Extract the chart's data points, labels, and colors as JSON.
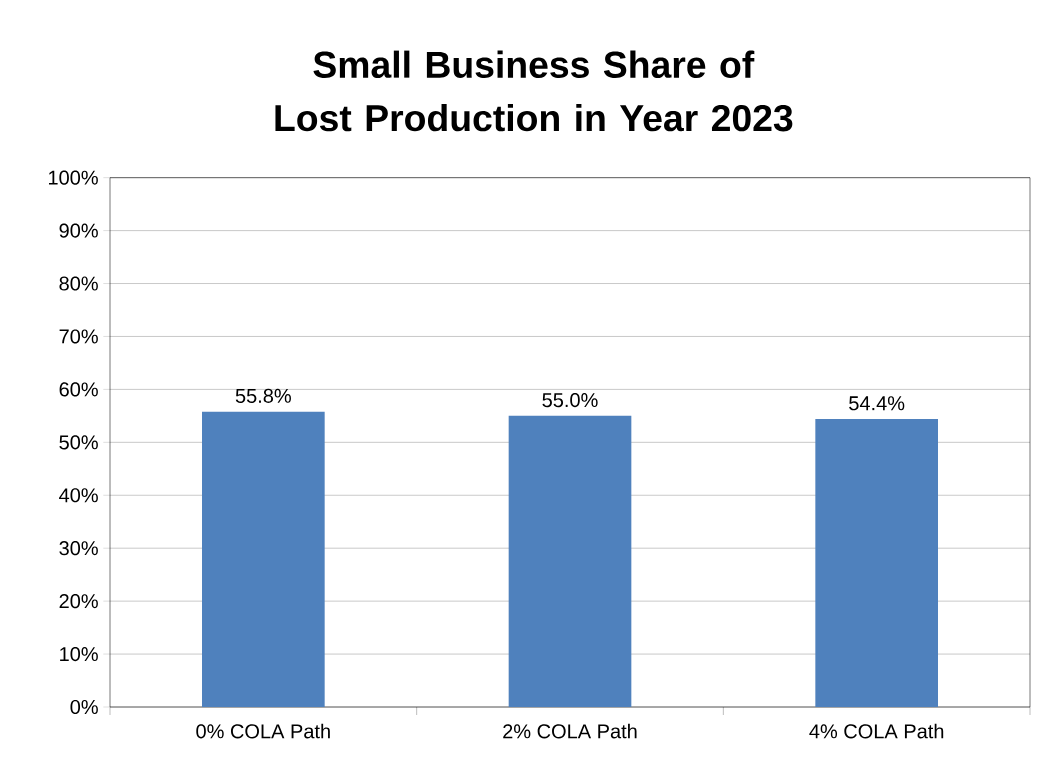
{
  "chart_data": {
    "type": "bar",
    "title": "Small Business Share of Lost Production in Year 2023",
    "categories": [
      "0% COLA Path",
      "2% COLA Path",
      "4% COLA Path"
    ],
    "values": [
      55.8,
      55.0,
      54.4
    ],
    "color": "#4f81bd",
    "value_labels": [
      "55.8%",
      "55.0%",
      "54.4%"
    ],
    "ylim": [
      0,
      100
    ],
    "yticks": [
      {
        "value": 0,
        "label": "0%"
      },
      {
        "value": 10,
        "label": "10%"
      },
      {
        "value": 20,
        "label": "20%"
      },
      {
        "value": 30,
        "label": "30%"
      },
      {
        "value": 40,
        "label": "40%"
      },
      {
        "value": 50,
        "label": "50%"
      },
      {
        "value": 60,
        "label": "60%"
      },
      {
        "value": 70,
        "label": "70%"
      },
      {
        "value": 80,
        "label": "80%"
      },
      {
        "value": 90,
        "label": "90%"
      },
      {
        "value": 100,
        "label": "100%"
      }
    ],
    "grid": "y"
  }
}
